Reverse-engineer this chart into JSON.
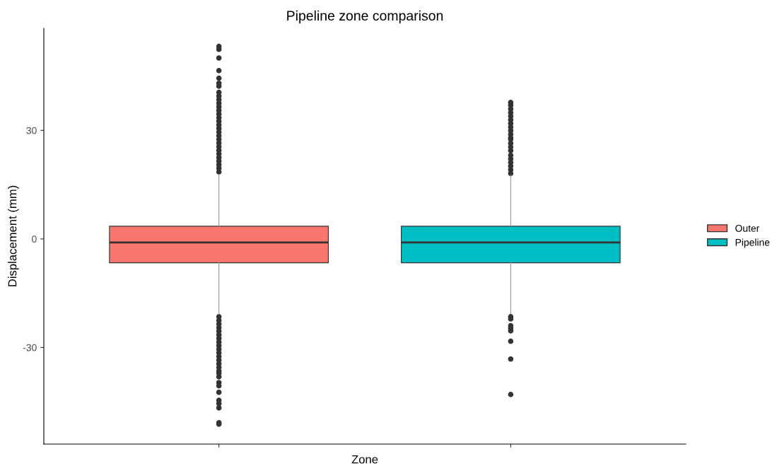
{
  "chart_data": {
    "type": "box",
    "title": "Pipeline zone comparison",
    "xlabel": "Zone",
    "ylabel": "Displacement (mm)",
    "categories": [
      null,
      null
    ],
    "series": [
      {
        "name": "Outer",
        "color": "#f8766d",
        "boxes": [
          {
            "low": -20.9,
            "q1": -6.6,
            "median": -1.0,
            "q3": 3.5,
            "high": 17.8,
            "outliers": [
              18.5,
              19.5,
              20.5,
              21.5,
              22.5,
              23.5,
              24.5,
              25.5,
              26.5,
              27.5,
              28.5,
              29.5,
              30.5,
              31.5,
              32.5,
              33.5,
              34.5,
              35.5,
              36.5,
              37.5,
              38.5,
              39.5,
              40.5,
              42.2,
              43.0,
              44.4,
              46.5,
              50.0,
              52.4,
              53.2,
              -21.5,
              -22.5,
              -23.5,
              -24.5,
              -25.5,
              -26.5,
              -27.5,
              -28.5,
              -29.5,
              -30.5,
              -31.5,
              -32.5,
              -33.5,
              -34.5,
              -35.5,
              -36.5,
              -37.1,
              -38.1,
              -39.7,
              -40.6,
              -42.4,
              -44.6,
              -45.5,
              -46.7,
              -50.8,
              -51.2
            ]
          },
          null
        ]
      },
      {
        "name": "Pipeline",
        "color": "#00bfc4",
        "boxes": [
          null,
          {
            "low": -20.7,
            "q1": -6.6,
            "median": -1.0,
            "q3": 3.5,
            "high": 17.6,
            "outliers": [
              18.1,
              19.1,
              20.1,
              21.1,
              22.1,
              23.1,
              24.4,
              25.4,
              26.4,
              27.5,
              27.9,
              28.9,
              29.9,
              30.9,
              31.9,
              32.9,
              33.9,
              34.9,
              35.9,
              36.9,
              37.7,
              -21.5,
              -22.1,
              -24.0,
              -24.7,
              -25.4,
              -28.3,
              -33.2,
              -43.0
            ]
          }
        ]
      }
    ],
    "ylim": [
      -56.7,
      58.2
    ],
    "yticks": [
      -30,
      0,
      30
    ],
    "grid": false,
    "legend": "right",
    "tick_labels": "y"
  }
}
